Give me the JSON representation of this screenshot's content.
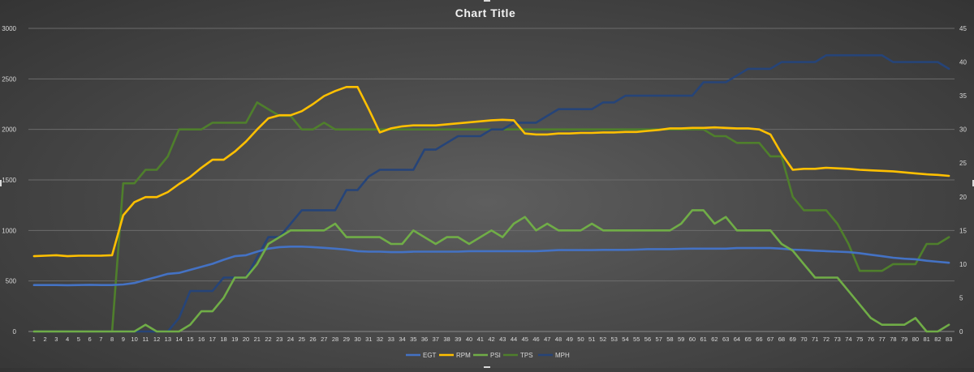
{
  "chart_data": {
    "type": "line",
    "title": "Chart Title",
    "xlabel": "",
    "ylabel": "",
    "ylim": [
      0,
      3000
    ],
    "y2lim": [
      0,
      45
    ],
    "yticks": [
      0,
      500,
      1000,
      1500,
      2000,
      2500,
      3000
    ],
    "y2ticks": [
      0,
      5,
      10,
      15,
      20,
      25,
      30,
      35,
      40,
      45
    ],
    "grid": true,
    "legend_position": "bottom",
    "x": [
      1,
      2,
      3,
      4,
      5,
      6,
      7,
      8,
      9,
      10,
      11,
      12,
      13,
      14,
      15,
      16,
      17,
      18,
      19,
      20,
      21,
      22,
      23,
      24,
      25,
      26,
      27,
      28,
      29,
      30,
      31,
      32,
      33,
      34,
      35,
      36,
      37,
      38,
      39,
      40,
      41,
      42,
      43,
      44,
      45,
      46,
      47,
      48,
      49,
      50,
      51,
      52,
      53,
      54,
      55,
      56,
      57,
      58,
      59,
      60,
      61,
      62,
      63,
      64,
      65,
      66,
      67,
      68,
      69,
      70,
      71,
      72,
      73,
      74,
      75,
      76,
      77,
      78,
      79,
      80,
      81,
      82,
      83
    ],
    "series": [
      {
        "name": "EGT",
        "color": "#4472c4",
        "axis": "left",
        "values": [
          460,
          460,
          460,
          458,
          460,
          462,
          460,
          460,
          465,
          480,
          510,
          540,
          570,
          580,
          610,
          640,
          670,
          710,
          745,
          755,
          790,
          820,
          835,
          840,
          840,
          835,
          828,
          820,
          810,
          795,
          790,
          790,
          785,
          785,
          790,
          790,
          790,
          790,
          790,
          795,
          795,
          795,
          795,
          795,
          795,
          795,
          800,
          805,
          805,
          805,
          805,
          808,
          808,
          808,
          810,
          815,
          815,
          815,
          818,
          820,
          820,
          820,
          820,
          825,
          825,
          825,
          825,
          820,
          810,
          805,
          800,
          795,
          790,
          785,
          775,
          760,
          745,
          730,
          720,
          715,
          700,
          690,
          680
        ]
      },
      {
        "name": "RPM",
        "color": "#ffc000",
        "axis": "left",
        "values": [
          745,
          750,
          755,
          745,
          750,
          750,
          750,
          755,
          1150,
          1280,
          1330,
          1330,
          1380,
          1460,
          1530,
          1620,
          1700,
          1700,
          1780,
          1880,
          2000,
          2110,
          2140,
          2140,
          2180,
          2250,
          2330,
          2380,
          2420,
          2420,
          2200,
          1970,
          2010,
          2030,
          2040,
          2040,
          2040,
          2050,
          2060,
          2070,
          2080,
          2090,
          2095,
          2090,
          1960,
          1950,
          1950,
          1960,
          1960,
          1965,
          1965,
          1970,
          1970,
          1975,
          1975,
          1985,
          1995,
          2010,
          2010,
          2015,
          2015,
          2020,
          2015,
          2010,
          2010,
          2000,
          1950,
          1760,
          1600,
          1610,
          1610,
          1620,
          1615,
          1610,
          1600,
          1595,
          1590,
          1585,
          1575,
          1565,
          1555,
          1550,
          1540
        ]
      },
      {
        "name": "PSI",
        "color": "#70ad47",
        "axis": "right",
        "values": [
          0,
          0,
          0,
          0,
          0,
          0,
          0,
          0,
          0,
          0,
          1,
          0,
          0,
          0,
          1,
          3,
          3,
          5,
          8,
          8,
          10,
          13,
          14,
          15,
          15,
          15,
          15,
          16,
          14,
          14,
          14,
          14,
          13,
          13,
          15,
          14,
          13,
          14,
          14,
          13,
          14,
          15,
          14,
          16,
          17,
          15,
          16,
          15,
          15,
          15,
          16,
          15,
          15,
          15,
          15,
          15,
          15,
          15,
          16,
          18,
          18,
          16,
          17,
          15,
          15,
          15,
          15,
          13,
          12,
          10,
          8,
          8,
          8,
          6,
          4,
          2,
          1,
          1,
          1,
          2,
          0,
          0,
          1
        ]
      },
      {
        "name": "TPS",
        "color": "#4f7f2c",
        "axis": "right",
        "values": [
          0,
          0,
          0,
          0,
          0,
          0,
          0,
          0,
          22,
          22,
          24,
          24,
          26,
          30,
          30,
          30,
          31,
          31,
          31,
          31,
          34,
          33,
          32,
          32,
          30,
          30,
          31,
          30,
          30,
          30,
          30,
          30,
          30,
          30,
          30,
          30,
          30,
          30,
          30,
          30,
          30,
          30,
          30,
          30,
          30,
          30,
          30,
          30,
          30,
          30,
          30,
          30,
          30,
          30,
          30,
          30,
          30,
          30,
          30,
          30,
          30,
          29,
          29,
          28,
          28,
          28,
          26,
          26,
          20,
          18,
          18,
          18,
          16,
          13,
          9,
          9,
          9,
          10,
          10,
          10,
          13,
          13,
          14
        ]
      },
      {
        "name": "MPH",
        "color": "#264478",
        "axis": "right",
        "values": [
          0,
          0,
          0,
          0,
          0,
          0,
          0,
          0,
          0,
          0,
          0,
          0,
          0,
          2,
          6,
          6,
          6,
          8,
          8,
          8,
          11,
          14,
          14,
          16,
          18,
          18,
          18,
          18,
          21,
          21,
          23,
          24,
          24,
          24,
          24,
          27,
          27,
          28,
          29,
          29,
          29,
          30,
          30,
          31,
          31,
          31,
          32,
          33,
          33,
          33,
          33,
          34,
          34,
          35,
          35,
          35,
          35,
          35,
          35,
          35,
          37,
          37,
          37,
          38,
          39,
          39,
          39,
          40,
          40,
          40,
          40,
          41,
          41,
          41,
          41,
          41,
          41,
          40,
          40,
          40,
          40,
          40,
          39
        ]
      }
    ]
  }
}
